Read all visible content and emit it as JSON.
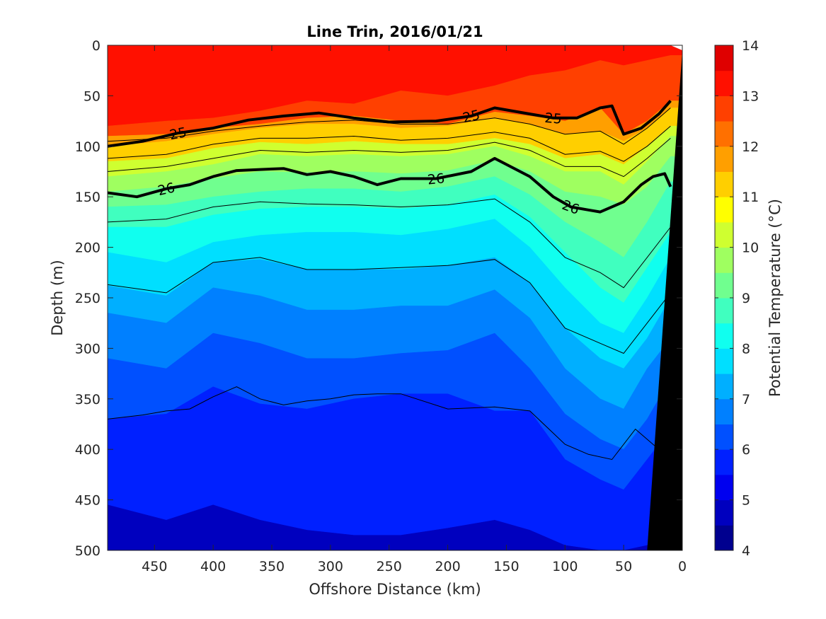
{
  "chart_data": {
    "type": "contour",
    "title": "Line Trin, 2016/01/21",
    "xlabel": "Offshore Distance (km)",
    "ylabel": "Depth (m)",
    "xlim": [
      490,
      0
    ],
    "ylim": [
      0,
      500
    ],
    "x_reversed": true,
    "y_reversed": true,
    "xticks": [
      450,
      400,
      350,
      300,
      250,
      200,
      150,
      100,
      50,
      0
    ],
    "yticks": [
      0,
      50,
      100,
      150,
      200,
      250,
      300,
      350,
      400,
      450,
      500
    ],
    "colorbar": {
      "label": "Potential Temperature (°C)",
      "min": 4,
      "max": 14,
      "step": 0.5,
      "ticks": [
        4,
        5,
        6,
        7,
        8,
        9,
        10,
        11,
        12,
        13,
        14
      ],
      "colormap": [
        "#00008F",
        "#0000BF",
        "#0000EF",
        "#0020FF",
        "#0050FF",
        "#0080FF",
        "#00AFFF",
        "#00DFFF",
        "#10FFEF",
        "#40FFBF",
        "#70FF8F",
        "#9FFF60",
        "#CFFF30",
        "#FFFF00",
        "#FFCF00",
        "#FF9F00",
        "#FF7000",
        "#FF4000",
        "#FF1000",
        "#DF0000",
        "#AF0000"
      ]
    },
    "isotherm_depths": {
      "distance_km": [
        490,
        440,
        400,
        360,
        320,
        280,
        240,
        200,
        160,
        130,
        100,
        70,
        50,
        30,
        10
      ],
      "t_12_5": [
        80,
        75,
        72,
        65,
        55,
        58,
        45,
        50,
        40,
        30,
        25,
        15,
        20,
        15,
        10
      ],
      "t_11_5": [
        90,
        88,
        82,
        78,
        72,
        70,
        75,
        78,
        66,
        70,
        75,
        62,
        88,
        75,
        55
      ],
      "t_11_0": [
        100,
        95,
        88,
        82,
        78,
        78,
        82,
        80,
        72,
        78,
        88,
        85,
        95,
        82,
        62
      ],
      "t_10_0": [
        115,
        112,
        102,
        96,
        98,
        95,
        98,
        98,
        92,
        98,
        112,
        108,
        118,
        100,
        80
      ],
      "t_9_5": [
        130,
        125,
        118,
        108,
        110,
        108,
        110,
        108,
        100,
        110,
        125,
        125,
        138,
        115,
        90
      ],
      "t_9_0": [
        145,
        140,
        132,
        125,
        126,
        125,
        127,
        124,
        114,
        125,
        145,
        150,
        158,
        140,
        110
      ],
      "t_8_5": [
        160,
        158,
        150,
        145,
        142,
        142,
        145,
        140,
        130,
        148,
        175,
        195,
        210,
        175,
        135
      ],
      "t_8_0": [
        180,
        180,
        168,
        162,
        160,
        160,
        162,
        158,
        148,
        170,
        205,
        240,
        255,
        220,
        185
      ],
      "t_7_5": [
        205,
        215,
        195,
        188,
        185,
        185,
        188,
        182,
        172,
        200,
        240,
        275,
        285,
        250,
        210
      ],
      "t_7_0": [
        238,
        248,
        215,
        212,
        222,
        222,
        222,
        218,
        210,
        235,
        280,
        310,
        320,
        290,
        250
      ],
      "t_6_5": [
        265,
        275,
        240,
        248,
        262,
        262,
        258,
        258,
        242,
        270,
        320,
        350,
        360,
        320,
        290
      ],
      "t_6_0": [
        310,
        320,
        285,
        295,
        310,
        310,
        305,
        302,
        285,
        320,
        365,
        390,
        400,
        370,
        330
      ],
      "t_5_5": [
        370,
        365,
        338,
        355,
        360,
        350,
        345,
        345,
        362,
        362,
        410,
        430,
        440,
        410,
        380
      ],
      "t_5_0": [
        455,
        470,
        455,
        470,
        480,
        485,
        485,
        478,
        470,
        480,
        495,
        500,
        500,
        495,
        490
      ]
    },
    "density_contours": [
      {
        "label": "25",
        "distance_km": [
          490,
          460,
          430,
          400,
          370,
          340,
          310,
          280,
          250,
          210,
          180,
          160,
          130,
          110,
          90,
          70,
          60,
          50,
          35,
          20,
          10
        ],
        "depth_m": [
          100,
          95,
          87,
          82,
          74,
          70,
          67,
          72,
          76,
          75,
          70,
          62,
          68,
          72,
          72,
          62,
          60,
          88,
          82,
          68,
          55
        ]
      },
      {
        "label": "26",
        "distance_km": [
          490,
          465,
          440,
          420,
          400,
          380,
          360,
          340,
          320,
          300,
          280,
          260,
          240,
          210,
          180,
          160,
          130,
          110,
          95,
          80,
          70,
          50,
          35,
          25,
          15,
          10
        ],
        "depth_m": [
          146,
          150,
          142,
          138,
          130,
          124,
          123,
          122,
          128,
          125,
          130,
          138,
          132,
          132,
          125,
          112,
          130,
          150,
          160,
          163,
          165,
          155,
          138,
          130,
          127,
          140
        ]
      }
    ],
    "thin_contours": [
      {
        "distance_km": [
          490,
          440,
          400,
          360,
          320,
          280,
          240,
          200,
          160,
          130,
          100,
          70,
          50,
          30,
          10
        ],
        "depth_m": [
          95,
          92,
          85,
          80,
          76,
          74,
          78,
          78,
          72,
          78,
          88,
          85,
          98,
          82,
          62
        ]
      },
      {
        "distance_km": [
          490,
          440,
          400,
          360,
          320,
          280,
          240,
          200,
          160,
          130,
          100,
          70,
          50,
          30,
          10
        ],
        "depth_m": [
          112,
          108,
          98,
          92,
          92,
          90,
          94,
          92,
          86,
          92,
          108,
          105,
          115,
          100,
          80
        ]
      },
      {
        "distance_km": [
          490,
          440,
          400,
          360,
          320,
          280,
          240,
          200,
          160,
          130,
          100,
          70,
          50,
          30,
          10
        ],
        "depth_m": [
          125,
          120,
          112,
          104,
          106,
          104,
          106,
          104,
          96,
          104,
          120,
          120,
          130,
          112,
          92
        ]
      },
      {
        "distance_km": [
          490,
          440,
          400,
          360,
          320,
          280,
          240,
          200,
          160,
          130,
          100,
          70,
          50,
          30,
          10
        ],
        "depth_m": [
          175,
          172,
          160,
          155,
          157,
          158,
          160,
          158,
          152,
          175,
          210,
          225,
          240,
          210,
          180
        ]
      },
      {
        "distance_km": [
          490,
          440,
          400,
          360,
          320,
          280,
          240,
          200,
          160,
          130,
          100,
          70,
          50,
          30,
          10
        ],
        "depth_m": [
          237,
          245,
          215,
          210,
          222,
          222,
          220,
          218,
          212,
          235,
          280,
          295,
          305,
          275,
          245
        ]
      },
      {
        "distance_km": [
          490,
          460,
          440,
          420,
          400,
          380,
          360,
          340,
          320,
          300,
          280,
          260,
          240,
          200,
          160,
          130,
          100,
          80,
          60,
          40,
          20
        ],
        "depth_m": [
          370,
          366,
          362,
          360,
          348,
          338,
          350,
          356,
          352,
          350,
          346,
          345,
          345,
          360,
          358,
          362,
          395,
          405,
          410,
          380,
          400
        ]
      }
    ]
  }
}
